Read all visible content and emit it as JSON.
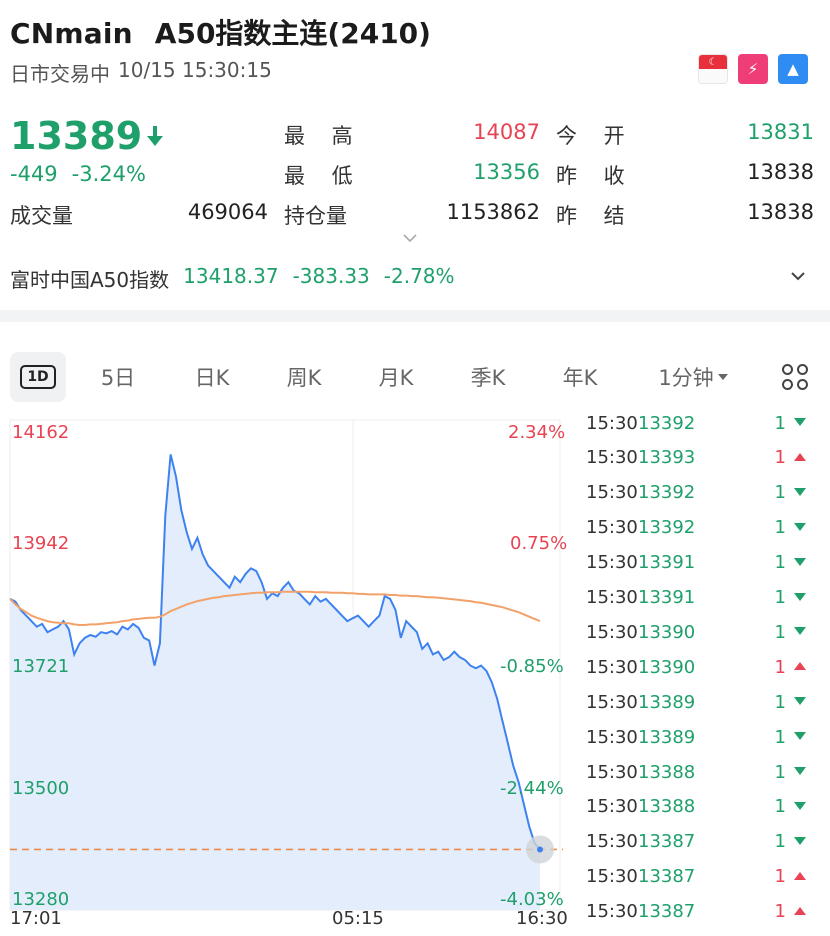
{
  "header": {
    "symbol": "CNmain",
    "name": "A50指数主连(2410)",
    "status": "日市交易中",
    "datetime": "10/15 15:30:15",
    "badges": [
      "singapore-flag-icon",
      "flash-1-icon",
      "stack-icon"
    ]
  },
  "quote": {
    "price": "13389",
    "change": "-449",
    "change_pct": "-3.24%",
    "volume_label": "成交量",
    "volume": "469064",
    "high_label": "最 高",
    "high": "14087",
    "low_label": "最 低",
    "low": "13356",
    "oi_label": "持仓量",
    "oi": "1153862",
    "open_label": "今 开",
    "open": "13831",
    "prev_close_label": "昨 收",
    "prev_close": "13838",
    "prev_settle_label": "昨 结",
    "prev_settle": "13838"
  },
  "index": {
    "name": "富时中国A50指数",
    "value": "13418.37",
    "change": "-383.33",
    "change_pct": "-2.78%"
  },
  "tabs": [
    {
      "label": "1D"
    },
    {
      "label": "5日"
    },
    {
      "label": "日K"
    },
    {
      "label": "周K"
    },
    {
      "label": "月K"
    },
    {
      "label": "季K"
    },
    {
      "label": "年K"
    },
    {
      "label": "1分钟"
    }
  ],
  "colors": {
    "up": "#e84352",
    "down": "#1fa06b",
    "line": "#3d82f0",
    "avg": "#f3a16a"
  },
  "chart_data": {
    "type": "line",
    "y_left_ticks": [
      "14162",
      "13942",
      "13721",
      "13500",
      "13280"
    ],
    "y_right_ticks": [
      "2.34%",
      "0.75%",
      "-0.85%",
      "-2.44%",
      "-4.03%"
    ],
    "x_ticks": [
      "17:01",
      "05:15",
      "16:30"
    ],
    "ylim": [
      13280,
      14162
    ],
    "prev_close": 13838,
    "series": [
      {
        "values": [
          13840,
          13835,
          13820,
          13810,
          13800,
          13790,
          13795,
          13780,
          13785,
          13790,
          13800,
          13785,
          13740,
          13760,
          13770,
          13775,
          13772,
          13780,
          13778,
          13782,
          13776,
          13790,
          13785,
          13795,
          13788,
          13770,
          13765,
          13720,
          13760,
          13990,
          14100,
          14060,
          14000,
          13960,
          13930,
          13950,
          13920,
          13900,
          13890,
          13880,
          13870,
          13860,
          13880,
          13870,
          13885,
          13895,
          13890,
          13870,
          13840,
          13850,
          13845,
          13860,
          13870,
          13855,
          13850,
          13840,
          13830,
          13845,
          13835,
          13840,
          13830,
          13820,
          13810,
          13800,
          13805,
          13810,
          13800,
          13790,
          13800,
          13810,
          13845,
          13840,
          13820,
          13770,
          13800,
          13790,
          13780,
          13750,
          13760,
          13740,
          13745,
          13730,
          13735,
          13745,
          13735,
          13730,
          13720,
          13715,
          13720,
          13710,
          13690,
          13660,
          13620,
          13580,
          13540,
          13510,
          13470,
          13430,
          13400,
          13389
        ]
      },
      {
        "values": [
          13840,
          13830,
          13822,
          13816,
          13810,
          13806,
          13803,
          13800,
          13798,
          13797,
          13796,
          13796,
          13794,
          13793,
          13793,
          13794,
          13794,
          13795,
          13796,
          13797,
          13798,
          13800,
          13801,
          13803,
          13804,
          13805,
          13806,
          13806,
          13808,
          13812,
          13818,
          13822,
          13826,
          13830,
          13833,
          13836,
          13838,
          13840,
          13842,
          13843,
          13845,
          13846,
          13847,
          13848,
          13849,
          13850,
          13851,
          13851,
          13852,
          13852,
          13852,
          13853,
          13853,
          13853,
          13853,
          13853,
          13853,
          13852,
          13852,
          13852,
          13851,
          13851,
          13851,
          13850,
          13850,
          13849,
          13849,
          13848,
          13848,
          13848,
          13848,
          13847,
          13847,
          13846,
          13846,
          13845,
          13845,
          13844,
          13843,
          13843,
          13842,
          13841,
          13840,
          13839,
          13838,
          13837,
          13836,
          13834,
          13833,
          13831,
          13829,
          13827,
          13825,
          13822,
          13819,
          13816,
          13812,
          13808,
          13804,
          13800
        ]
      }
    ],
    "current_price": 13389
  },
  "ticks": [
    {
      "time": "15:30",
      "price": "13392",
      "qty": "1",
      "dir": "dn"
    },
    {
      "time": "15:30",
      "price": "13393",
      "qty": "1",
      "dir": "up"
    },
    {
      "time": "15:30",
      "price": "13392",
      "qty": "1",
      "dir": "dn"
    },
    {
      "time": "15:30",
      "price": "13392",
      "qty": "1",
      "dir": "dn"
    },
    {
      "time": "15:30",
      "price": "13391",
      "qty": "1",
      "dir": "dn"
    },
    {
      "time": "15:30",
      "price": "13391",
      "qty": "1",
      "dir": "dn"
    },
    {
      "time": "15:30",
      "price": "13390",
      "qty": "1",
      "dir": "dn"
    },
    {
      "time": "15:30",
      "price": "13390",
      "qty": "1",
      "dir": "up"
    },
    {
      "time": "15:30",
      "price": "13389",
      "qty": "1",
      "dir": "dn"
    },
    {
      "time": "15:30",
      "price": "13389",
      "qty": "1",
      "dir": "dn"
    },
    {
      "time": "15:30",
      "price": "13388",
      "qty": "1",
      "dir": "dn"
    },
    {
      "time": "15:30",
      "price": "13388",
      "qty": "1",
      "dir": "dn"
    },
    {
      "time": "15:30",
      "price": "13387",
      "qty": "1",
      "dir": "dn"
    },
    {
      "time": "15:30",
      "price": "13387",
      "qty": "1",
      "dir": "up"
    },
    {
      "time": "15:30",
      "price": "13387",
      "qty": "1",
      "dir": "up"
    }
  ]
}
